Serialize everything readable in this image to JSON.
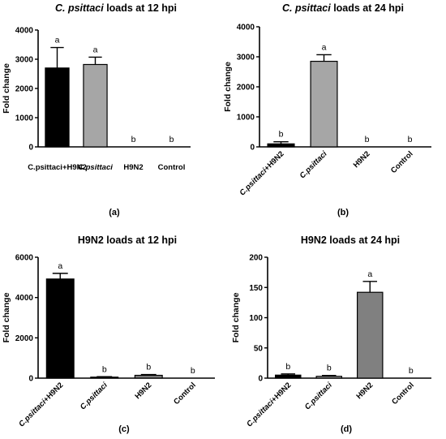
{
  "chart_data": [
    {
      "type": "bar",
      "title_parts": [
        {
          "text": "C. psittaci",
          "italic": true
        },
        {
          "text": " loads at 12 hpi",
          "italic": false
        }
      ],
      "ylabel": "Fold change",
      "ylim": [
        0,
        4000
      ],
      "yticks": [
        "0",
        "1000",
        "2000",
        "3000",
        "4000"
      ],
      "categories": [
        {
          "parts": [
            {
              "text": "C.psittaci",
              "italic": false
            },
            {
              "text": "+H9N2",
              "italic": false
            }
          ]
        },
        {
          "parts": [
            {
              "text": "C.psittaci",
              "italic": true
            }
          ]
        },
        {
          "parts": [
            {
              "text": "H9N2",
              "italic": false
            }
          ]
        },
        {
          "parts": [
            {
              "text": "Control",
              "italic": false
            }
          ]
        }
      ],
      "values": [
        2700,
        2820,
        0,
        0
      ],
      "errors": [
        700,
        250,
        0,
        0
      ],
      "significance": [
        "a",
        "a",
        "b",
        "b"
      ],
      "colors": [
        "#000000",
        "#a6a6a6",
        "#000000",
        "#000000"
      ],
      "rotated_labels": false,
      "panel_label": "(a)"
    },
    {
      "type": "bar",
      "title_parts": [
        {
          "text": "C. psittaci",
          "italic": true
        },
        {
          "text": " loads at 24 hpi",
          "italic": false
        }
      ],
      "ylabel": "Fold change",
      "ylim": [
        0,
        4000
      ],
      "yticks": [
        "0",
        "1000",
        "2000",
        "3000",
        "4000"
      ],
      "categories": [
        {
          "parts": [
            {
              "text": "C.psittaci",
              "italic": true
            },
            {
              "text": "+H9N2",
              "italic": false
            }
          ]
        },
        {
          "parts": [
            {
              "text": "C.psittaci",
              "italic": true
            }
          ]
        },
        {
          "parts": [
            {
              "text": "H9N2",
              "italic": false
            }
          ]
        },
        {
          "parts": [
            {
              "text": "Control",
              "italic": false
            }
          ]
        }
      ],
      "values": [
        100,
        2850,
        0,
        0
      ],
      "errors": [
        70,
        220,
        0,
        0
      ],
      "significance": [
        "b",
        "a",
        "b",
        "b"
      ],
      "colors": [
        "#000000",
        "#a6a6a6",
        "#000000",
        "#000000"
      ],
      "rotated_labels": true,
      "panel_label": "(b)"
    },
    {
      "type": "bar",
      "title_parts": [
        {
          "text": "H9N2 loads at 12 hpi",
          "italic": false
        }
      ],
      "ylabel": "Fold change",
      "ylim": [
        0,
        6000
      ],
      "yticks": [
        "0",
        "2000",
        "4000",
        "6000"
      ],
      "categories": [
        {
          "parts": [
            {
              "text": "C.psittaci",
              "italic": true
            },
            {
              "text": "+H9N2",
              "italic": false
            }
          ]
        },
        {
          "parts": [
            {
              "text": "C.psittaci",
              "italic": true
            }
          ]
        },
        {
          "parts": [
            {
              "text": "H9N2",
              "italic": false
            }
          ]
        },
        {
          "parts": [
            {
              "text": "Control",
              "italic": false
            }
          ]
        }
      ],
      "values": [
        4920,
        50,
        140,
        0
      ],
      "errors": [
        280,
        20,
        40,
        0
      ],
      "significance": [
        "a",
        "b",
        "b",
        "b"
      ],
      "colors": [
        "#000000",
        "#a6a6a6",
        "#808080",
        "#000000"
      ],
      "rotated_labels": true,
      "panel_label": "(c)"
    },
    {
      "type": "bar",
      "title_parts": [
        {
          "text": "H9N2 loads at 24 hpi",
          "italic": false
        }
      ],
      "ylabel": "Fold change",
      "ylim": [
        0,
        200
      ],
      "yticks": [
        "0",
        "50",
        "100",
        "150",
        "200"
      ],
      "categories": [
        {
          "parts": [
            {
              "text": "C.psittaci",
              "italic": true
            },
            {
              "text": "+H9N2",
              "italic": false
            }
          ]
        },
        {
          "parts": [
            {
              "text": "C.psittaci",
              "italic": true
            }
          ]
        },
        {
          "parts": [
            {
              "text": "H9N2",
              "italic": false
            }
          ]
        },
        {
          "parts": [
            {
              "text": "Control",
              "italic": false
            }
          ]
        }
      ],
      "values": [
        5,
        3,
        142,
        0
      ],
      "errors": [
        2,
        1.5,
        18,
        0
      ],
      "significance": [
        "b",
        "b",
        "a",
        "b"
      ],
      "colors": [
        "#000000",
        "#a6a6a6",
        "#808080",
        "#000000"
      ],
      "rotated_labels": true,
      "panel_label": "(d)"
    }
  ]
}
